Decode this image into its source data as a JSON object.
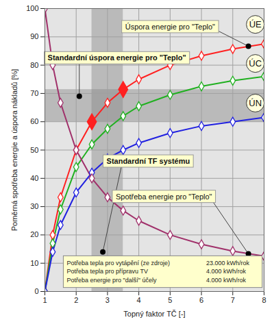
{
  "chart_data": {
    "type": "line",
    "x_label": "Topný faktor TČ [-]",
    "y_label": "Poměrná spotřeba energie a úspora nákladů [%]",
    "x": [
      1,
      1.25,
      1.5,
      2,
      2.5,
      3,
      3.5,
      4,
      5,
      6,
      7,
      8
    ],
    "series": [
      {
        "name": "ÚE",
        "color": "#ff2020",
        "values": [
          0,
          20,
          33.3,
          50,
          60,
          66.7,
          71.4,
          75,
          80,
          83.3,
          85.7,
          87.5
        ]
      },
      {
        "name": "ÚC",
        "color": "#20b020",
        "values": [
          0,
          17,
          29,
          44,
          52,
          57.5,
          62,
          65.5,
          69.5,
          72.5,
          74.5,
          76
        ]
      },
      {
        "name": "ÚN",
        "color": "#2020e0",
        "values": [
          0,
          14,
          23.5,
          35,
          42,
          47,
          50,
          52.5,
          56,
          58.5,
          60,
          61.5
        ]
      },
      {
        "name": "Spotřeba energie pro \"Teplo\"",
        "color": "#a0306a",
        "values": [
          100,
          80,
          66.7,
          50,
          40,
          33.3,
          28.6,
          25,
          20,
          16.7,
          14.3,
          12.5
        ]
      }
    ],
    "highlight_x": [
      2.5,
      3.5
    ],
    "x_band": [
      2.5,
      3.5
    ],
    "y_band": [
      60,
      71.4
    ],
    "annotations": [
      "Úspora energie pro \"Teplo\"",
      "Standardní úspora energie pro \"Teplo\"",
      "Standardní TF systému"
    ],
    "info_table": [
      [
        "Potřeba tepla pro vytápění (ze zdroje)",
        "23.000 kWh/rok"
      ],
      [
        "Potřeba tepla pro přípravu TV",
        "4.000 kWh/rok"
      ],
      [
        "Potřeba energie pro \"další\" účely",
        "4.000 kWh/rok"
      ]
    ],
    "marker": "diamond",
    "xlim": [
      1,
      8
    ],
    "xticks": [
      1,
      2,
      3,
      4,
      5,
      6,
      7,
      8
    ],
    "ylim": [
      0,
      100
    ],
    "yticks": [
      0,
      10,
      20,
      30,
      40,
      50,
      60,
      70,
      80,
      90,
      100
    ],
    "grid": true
  }
}
